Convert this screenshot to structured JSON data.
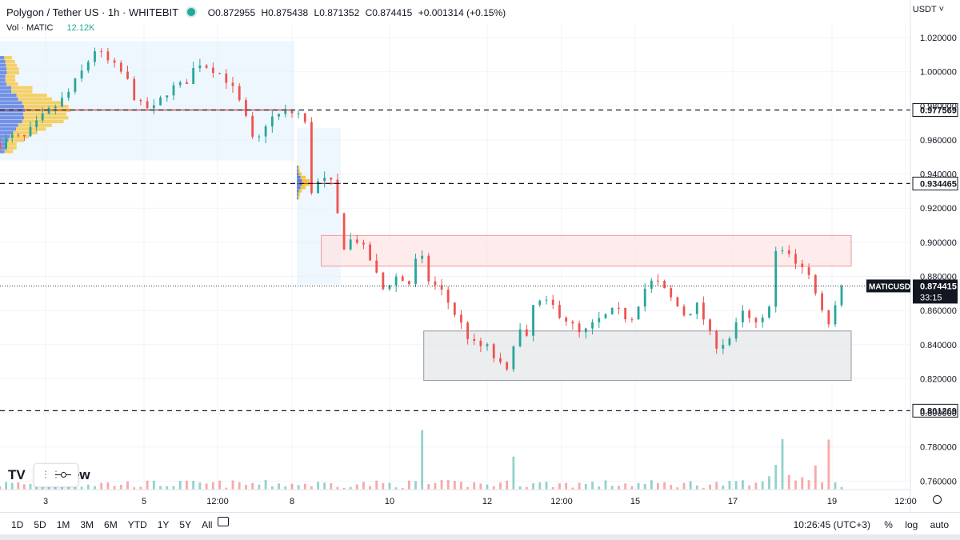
{
  "header": {
    "symbol": "Polygon / Tether US · 1h · WHITEBIT",
    "open": "O0.872955",
    "high": "H0.875438",
    "low": "L0.871352",
    "close": "C0.874415",
    "change": "+0.001314 (+0.15%)",
    "volume_label": "Vol · MATIC",
    "volume_value": "12.12K",
    "currency": "USDT ˅"
  },
  "price_badges": {
    "symbol": "MATICUSDT",
    "price": "0.874415",
    "countdown": "33:15"
  },
  "levels": [
    "0.977569",
    "0.934465",
    "0.801269"
  ],
  "toolbar": {
    "timeframes": [
      "1D",
      "5D",
      "1M",
      "3M",
      "6M",
      "YTD",
      "1Y",
      "5Y",
      "All"
    ],
    "time": "10:26:45 (UTC+3)",
    "pct": "%",
    "log": "log",
    "auto": "auto"
  },
  "watermark": {
    "logo": "TV",
    "text": "gView"
  },
  "colors": {
    "up": "#26a69a",
    "down": "#ef5350",
    "resistance_zone": "#fde4e4",
    "support_zone": "#e6e7ea",
    "level_line": "#131722",
    "poc": "#d32f2f"
  },
  "chart_data": {
    "type": "candlestick",
    "ylim": [
      0.755,
      1.028
    ],
    "y_ticks": [
      "1.020000",
      "1.000000",
      "0.980000",
      "0.960000",
      "0.940000",
      "0.920000",
      "0.900000",
      "0.880000",
      "0.860000",
      "0.840000",
      "0.820000",
      "0.800000",
      "0.780000",
      "0.760000"
    ],
    "x_ticks": [
      "3",
      "5",
      "12:00",
      "8",
      "10",
      "12",
      "12:00",
      "15",
      "17",
      "19",
      "12:00"
    ],
    "last_price": 0.874415,
    "horizontal_levels": [
      0.977569,
      0.934465,
      0.801269
    ],
    "zones": [
      {
        "name": "resistance",
        "from_day": 8.6,
        "to_day": 19.4,
        "low": 0.886,
        "high": 0.904
      },
      {
        "name": "support",
        "from_day": 10.7,
        "to_day": 19.4,
        "low": 0.819,
        "high": 0.848
      }
    ],
    "close_path": [
      [
        2.0,
        0.958
      ],
      [
        2.3,
        0.962
      ],
      [
        2.5,
        0.96
      ],
      [
        2.7,
        0.966
      ],
      [
        3.0,
        0.975
      ],
      [
        3.4,
        0.985
      ],
      [
        3.7,
        0.998
      ],
      [
        4.0,
        1.013
      ],
      [
        4.3,
        1.005
      ],
      [
        4.6,
        0.998
      ],
      [
        4.9,
        0.98
      ],
      [
        5.2,
        0.978
      ],
      [
        5.5,
        0.99
      ],
      [
        5.8,
        0.992
      ],
      [
        6.1,
        1.006
      ],
      [
        6.4,
        1.002
      ],
      [
        6.7,
        0.995
      ],
      [
        7.0,
        0.978
      ],
      [
        7.25,
        0.955
      ],
      [
        7.5,
        0.972
      ],
      [
        7.8,
        0.975
      ],
      [
        8.0,
        0.976
      ],
      [
        8.2,
        0.975
      ],
      [
        8.3,
        0.966
      ],
      [
        8.38,
        0.93
      ],
      [
        8.6,
        0.937
      ],
      [
        8.8,
        0.934
      ],
      [
        8.9,
        0.925
      ],
      [
        9.0,
        0.897
      ],
      [
        9.3,
        0.903
      ],
      [
        9.6,
        0.89
      ],
      [
        9.85,
        0.872
      ],
      [
        10.1,
        0.88
      ],
      [
        10.4,
        0.876
      ],
      [
        10.6,
        0.895
      ],
      [
        10.8,
        0.878
      ],
      [
        11.1,
        0.87
      ],
      [
        11.4,
        0.855
      ],
      [
        11.7,
        0.84
      ],
      [
        12.0,
        0.838
      ],
      [
        12.3,
        0.826
      ],
      [
        12.45,
        0.822
      ],
      [
        12.6,
        0.858
      ],
      [
        12.75,
        0.835
      ],
      [
        12.95,
        0.865
      ],
      [
        13.3,
        0.863
      ],
      [
        13.6,
        0.855
      ],
      [
        13.9,
        0.845
      ],
      [
        14.2,
        0.853
      ],
      [
        14.6,
        0.86
      ],
      [
        14.9,
        0.855
      ],
      [
        15.2,
        0.873
      ],
      [
        15.4,
        0.878
      ],
      [
        15.7,
        0.868
      ],
      [
        16.0,
        0.858
      ],
      [
        16.3,
        0.863
      ],
      [
        16.6,
        0.84
      ],
      [
        16.9,
        0.842
      ],
      [
        17.2,
        0.858
      ],
      [
        17.5,
        0.85
      ],
      [
        17.7,
        0.858
      ],
      [
        17.9,
        0.9
      ],
      [
        18.3,
        0.888
      ],
      [
        18.6,
        0.878
      ],
      [
        18.9,
        0.85
      ],
      [
        19.0,
        0.862
      ],
      [
        19.15,
        0.87
      ],
      [
        19.3,
        0.874
      ]
    ]
  }
}
